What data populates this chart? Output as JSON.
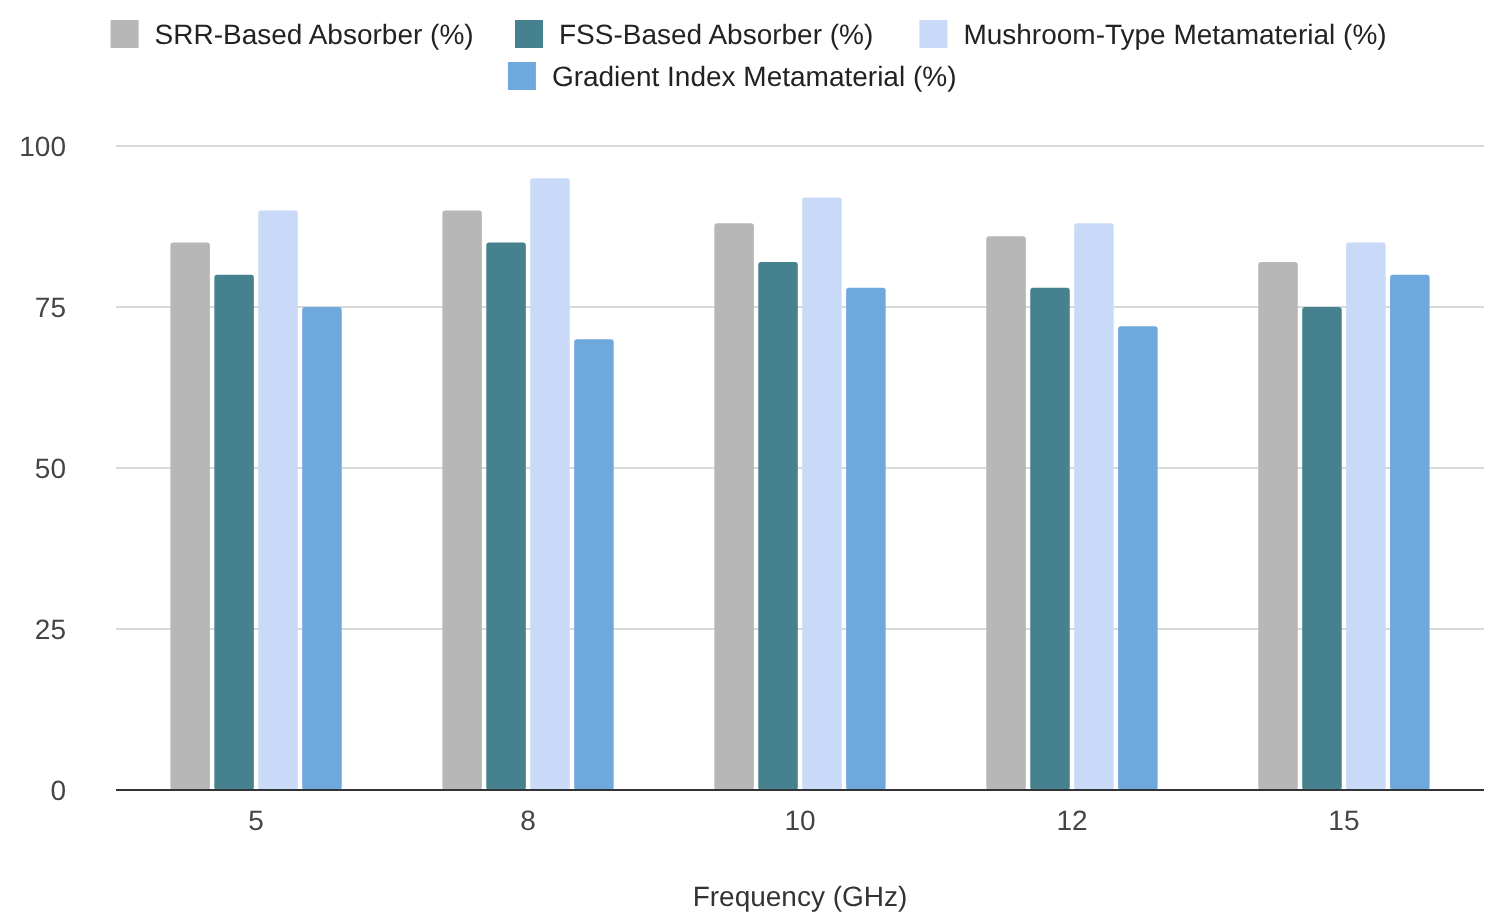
{
  "chart_data": {
    "type": "bar",
    "xlabel": "Frequency (GHz)",
    "categories": [
      "5",
      "8",
      "10",
      "12",
      "15"
    ],
    "series": [
      {
        "name": "SRR-Based Absorber (%)",
        "color": "#b7b7b7",
        "values": [
          85,
          90,
          88,
          86,
          82
        ]
      },
      {
        "name": "FSS-Based Absorber (%)",
        "color": "#45818e",
        "values": [
          80,
          85,
          82,
          78,
          75
        ]
      },
      {
        "name": "Mushroom-Type Metamaterial (%)",
        "color": "#c9daf8",
        "values": [
          90,
          95,
          92,
          88,
          85
        ]
      },
      {
        "name": "Gradient Index Metamaterial (%)",
        "color": "#6fa8dc",
        "values": [
          75,
          70,
          78,
          72,
          80
        ]
      }
    ],
    "ylim": [
      0,
      100
    ],
    "yticks": [
      0,
      25,
      50,
      75,
      100
    ],
    "grid": "y",
    "legend": "top"
  }
}
